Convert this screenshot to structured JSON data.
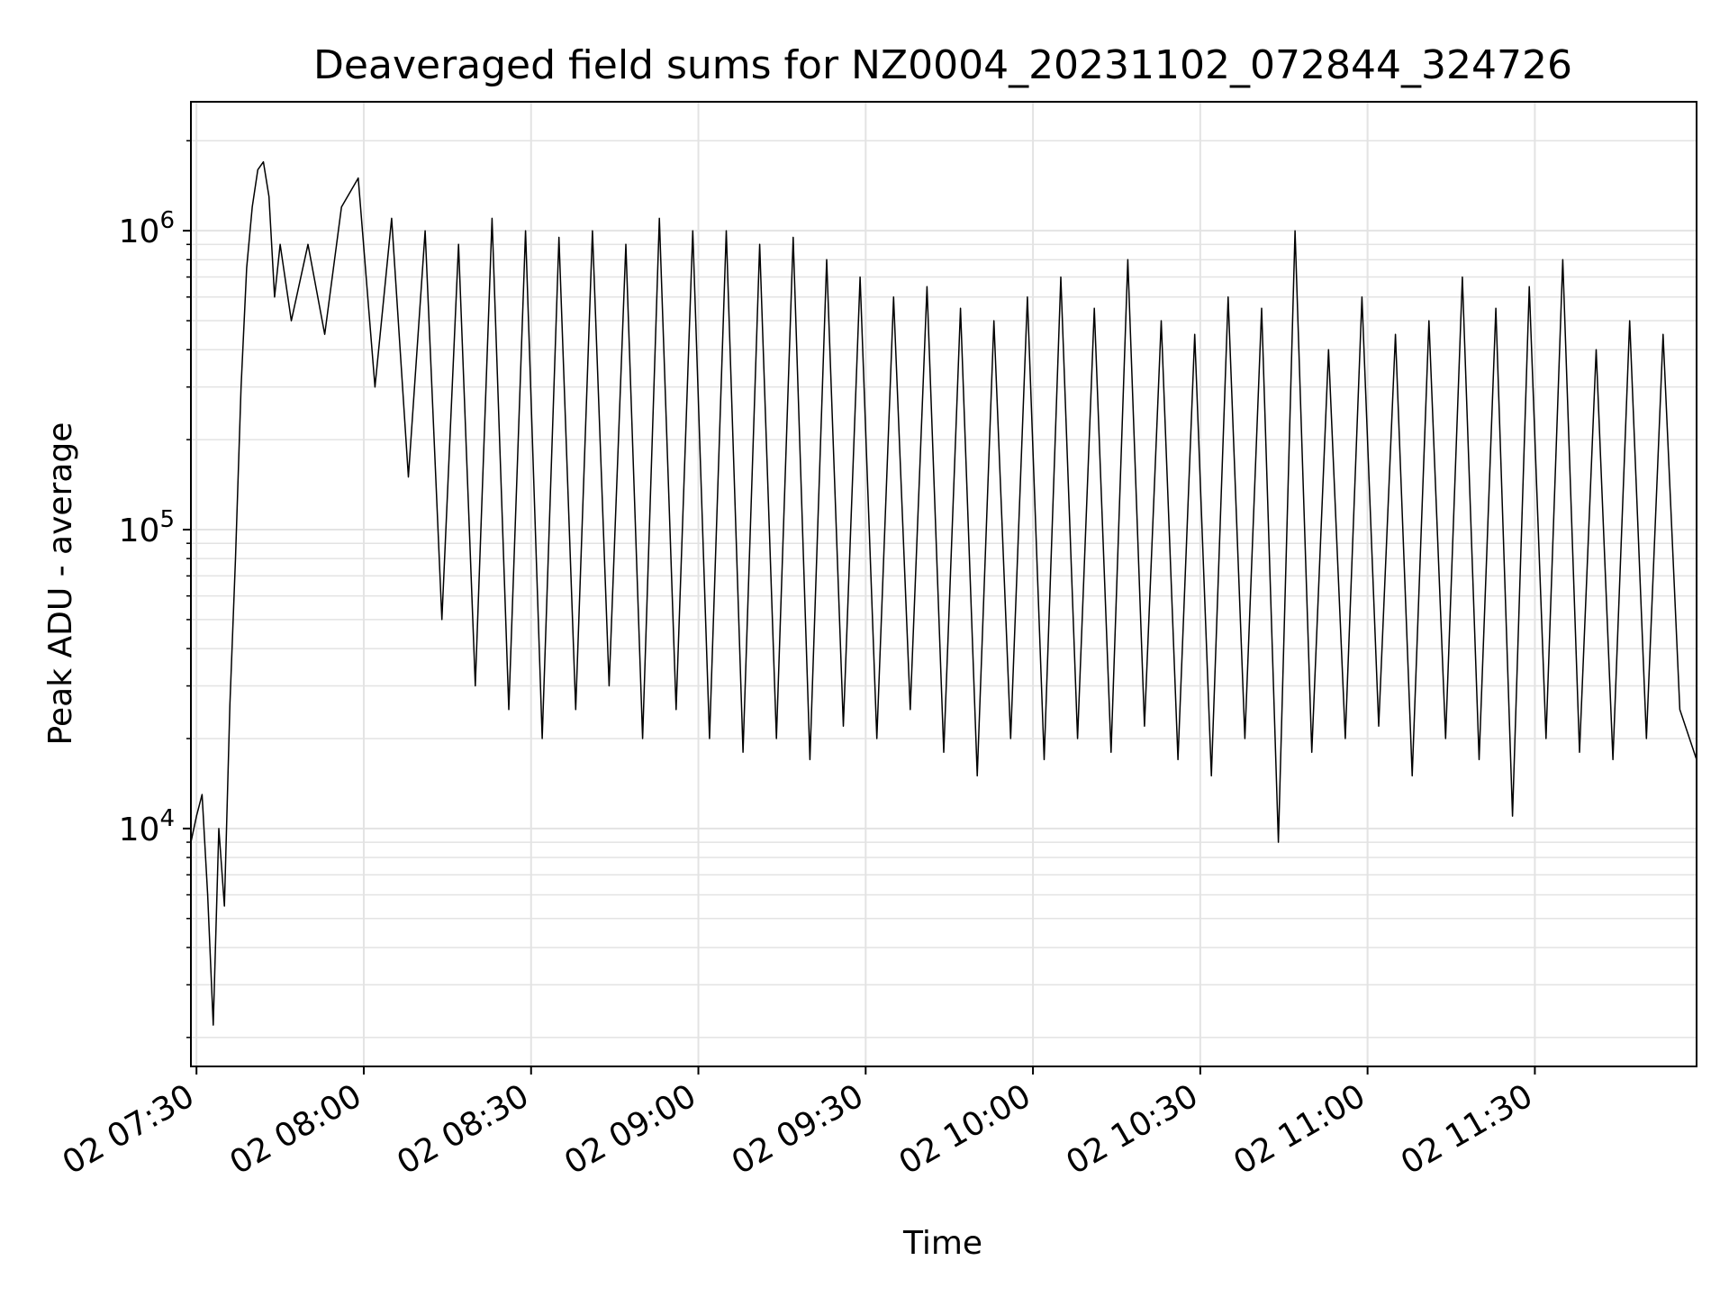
{
  "chart_data": {
    "type": "line",
    "title": "Deaveraged field sums for NZ0004_20231102_072844_324726",
    "xlabel": "Time",
    "ylabel": "Peak ADU - average",
    "yscale": "log",
    "ylim": [
      1600,
      2700000
    ],
    "xlim": [
      "2023-11-02 07:29",
      "2023-11-02 11:59"
    ],
    "grid": true,
    "line_color": "#000000",
    "x_ticks": [
      {
        "label": "02 07:30",
        "value": "2023-11-02 07:30"
      },
      {
        "label": "02 08:00",
        "value": "2023-11-02 08:00"
      },
      {
        "label": "02 08:30",
        "value": "2023-11-02 08:30"
      },
      {
        "label": "02 09:00",
        "value": "2023-11-02 09:00"
      },
      {
        "label": "02 09:30",
        "value": "2023-11-02 09:30"
      },
      {
        "label": "02 10:00",
        "value": "2023-11-02 10:00"
      },
      {
        "label": "02 10:30",
        "value": "2023-11-02 10:30"
      },
      {
        "label": "02 11:00",
        "value": "2023-11-02 11:00"
      },
      {
        "label": "02 11:30",
        "value": "2023-11-02 11:30"
      }
    ],
    "y_ticks": [
      {
        "base": "10",
        "exp": "4",
        "value": 10000
      },
      {
        "base": "10",
        "exp": "5",
        "value": 100000
      },
      {
        "base": "10",
        "exp": "6",
        "value": 1000000
      }
    ],
    "series": [
      {
        "x": [
          "2023-11-02 07:29",
          "2023-11-02 07:30",
          "2023-11-02 07:31",
          "2023-11-02 07:32",
          "2023-11-02 07:33",
          "2023-11-02 07:34",
          "2023-11-02 07:35",
          "2023-11-02 07:36",
          "2023-11-02 07:37",
          "2023-11-02 07:38",
          "2023-11-02 07:39",
          "2023-11-02 07:40",
          "2023-11-02 07:41",
          "2023-11-02 07:42",
          "2023-11-02 07:43",
          "2023-11-02 07:44",
          "2023-11-02 07:45",
          "2023-11-02 07:47",
          "2023-11-02 07:50",
          "2023-11-02 07:53",
          "2023-11-02 07:56",
          "2023-11-02 07:59",
          "2023-11-02 08:02",
          "2023-11-02 08:05",
          "2023-11-02 08:08",
          "2023-11-02 08:11",
          "2023-11-02 08:14",
          "2023-11-02 08:17",
          "2023-11-02 08:20",
          "2023-11-02 08:23",
          "2023-11-02 08:26",
          "2023-11-02 08:29",
          "2023-11-02 08:32",
          "2023-11-02 08:35",
          "2023-11-02 08:38",
          "2023-11-02 08:41",
          "2023-11-02 08:44",
          "2023-11-02 08:47",
          "2023-11-02 08:50",
          "2023-11-02 08:53",
          "2023-11-02 08:56",
          "2023-11-02 08:59",
          "2023-11-02 09:02",
          "2023-11-02 09:05",
          "2023-11-02 09:08",
          "2023-11-02 09:11",
          "2023-11-02 09:14",
          "2023-11-02 09:17",
          "2023-11-02 09:20",
          "2023-11-02 09:23",
          "2023-11-02 09:26",
          "2023-11-02 09:29",
          "2023-11-02 09:32",
          "2023-11-02 09:35",
          "2023-11-02 09:38",
          "2023-11-02 09:41",
          "2023-11-02 09:44",
          "2023-11-02 09:47",
          "2023-11-02 09:50",
          "2023-11-02 09:53",
          "2023-11-02 09:56",
          "2023-11-02 09:59",
          "2023-11-02 10:02",
          "2023-11-02 10:05",
          "2023-11-02 10:08",
          "2023-11-02 10:11",
          "2023-11-02 10:14",
          "2023-11-02 10:17",
          "2023-11-02 10:20",
          "2023-11-02 10:23",
          "2023-11-02 10:26",
          "2023-11-02 10:29",
          "2023-11-02 10:32",
          "2023-11-02 10:35",
          "2023-11-02 10:38",
          "2023-11-02 10:41",
          "2023-11-02 10:44",
          "2023-11-02 10:47",
          "2023-11-02 10:50",
          "2023-11-02 10:53",
          "2023-11-02 10:56",
          "2023-11-02 10:59",
          "2023-11-02 11:02",
          "2023-11-02 11:05",
          "2023-11-02 11:08",
          "2023-11-02 11:11",
          "2023-11-02 11:14",
          "2023-11-02 11:17",
          "2023-11-02 11:20",
          "2023-11-02 11:23",
          "2023-11-02 11:26",
          "2023-11-02 11:29",
          "2023-11-02 11:32",
          "2023-11-02 11:35",
          "2023-11-02 11:38",
          "2023-11-02 11:41",
          "2023-11-02 11:44",
          "2023-11-02 11:47",
          "2023-11-02 11:50",
          "2023-11-02 11:53",
          "2023-11-02 11:56",
          "2023-11-02 11:59"
        ],
        "y": [
          9000,
          11000,
          13000,
          6000,
          2200,
          10000,
          5500,
          26000,
          80000,
          300000,
          750000,
          1200000,
          1600000,
          1700000,
          1300000,
          600000,
          900000,
          500000,
          900000,
          450000,
          1200000,
          1500000,
          300000,
          1100000,
          150000,
          1000000,
          50000,
          900000,
          30000,
          1100000,
          25000,
          1000000,
          20000,
          950000,
          25000,
          1000000,
          30000,
          900000,
          20000,
          1100000,
          25000,
          1000000,
          20000,
          1000000,
          18000,
          900000,
          20000,
          950000,
          17000,
          800000,
          22000,
          700000,
          20000,
          600000,
          25000,
          650000,
          18000,
          550000,
          15000,
          500000,
          20000,
          600000,
          17000,
          700000,
          20000,
          550000,
          18000,
          800000,
          22000,
          500000,
          17000,
          450000,
          15000,
          600000,
          20000,
          550000,
          9000,
          1000000,
          18000,
          400000,
          20000,
          600000,
          22000,
          450000,
          15000,
          500000,
          20000,
          700000,
          17000,
          550000,
          11000,
          650000,
          20000,
          800000,
          18000,
          400000,
          17000,
          500000,
          20000,
          450000,
          25000,
          17000
        ]
      }
    ]
  }
}
